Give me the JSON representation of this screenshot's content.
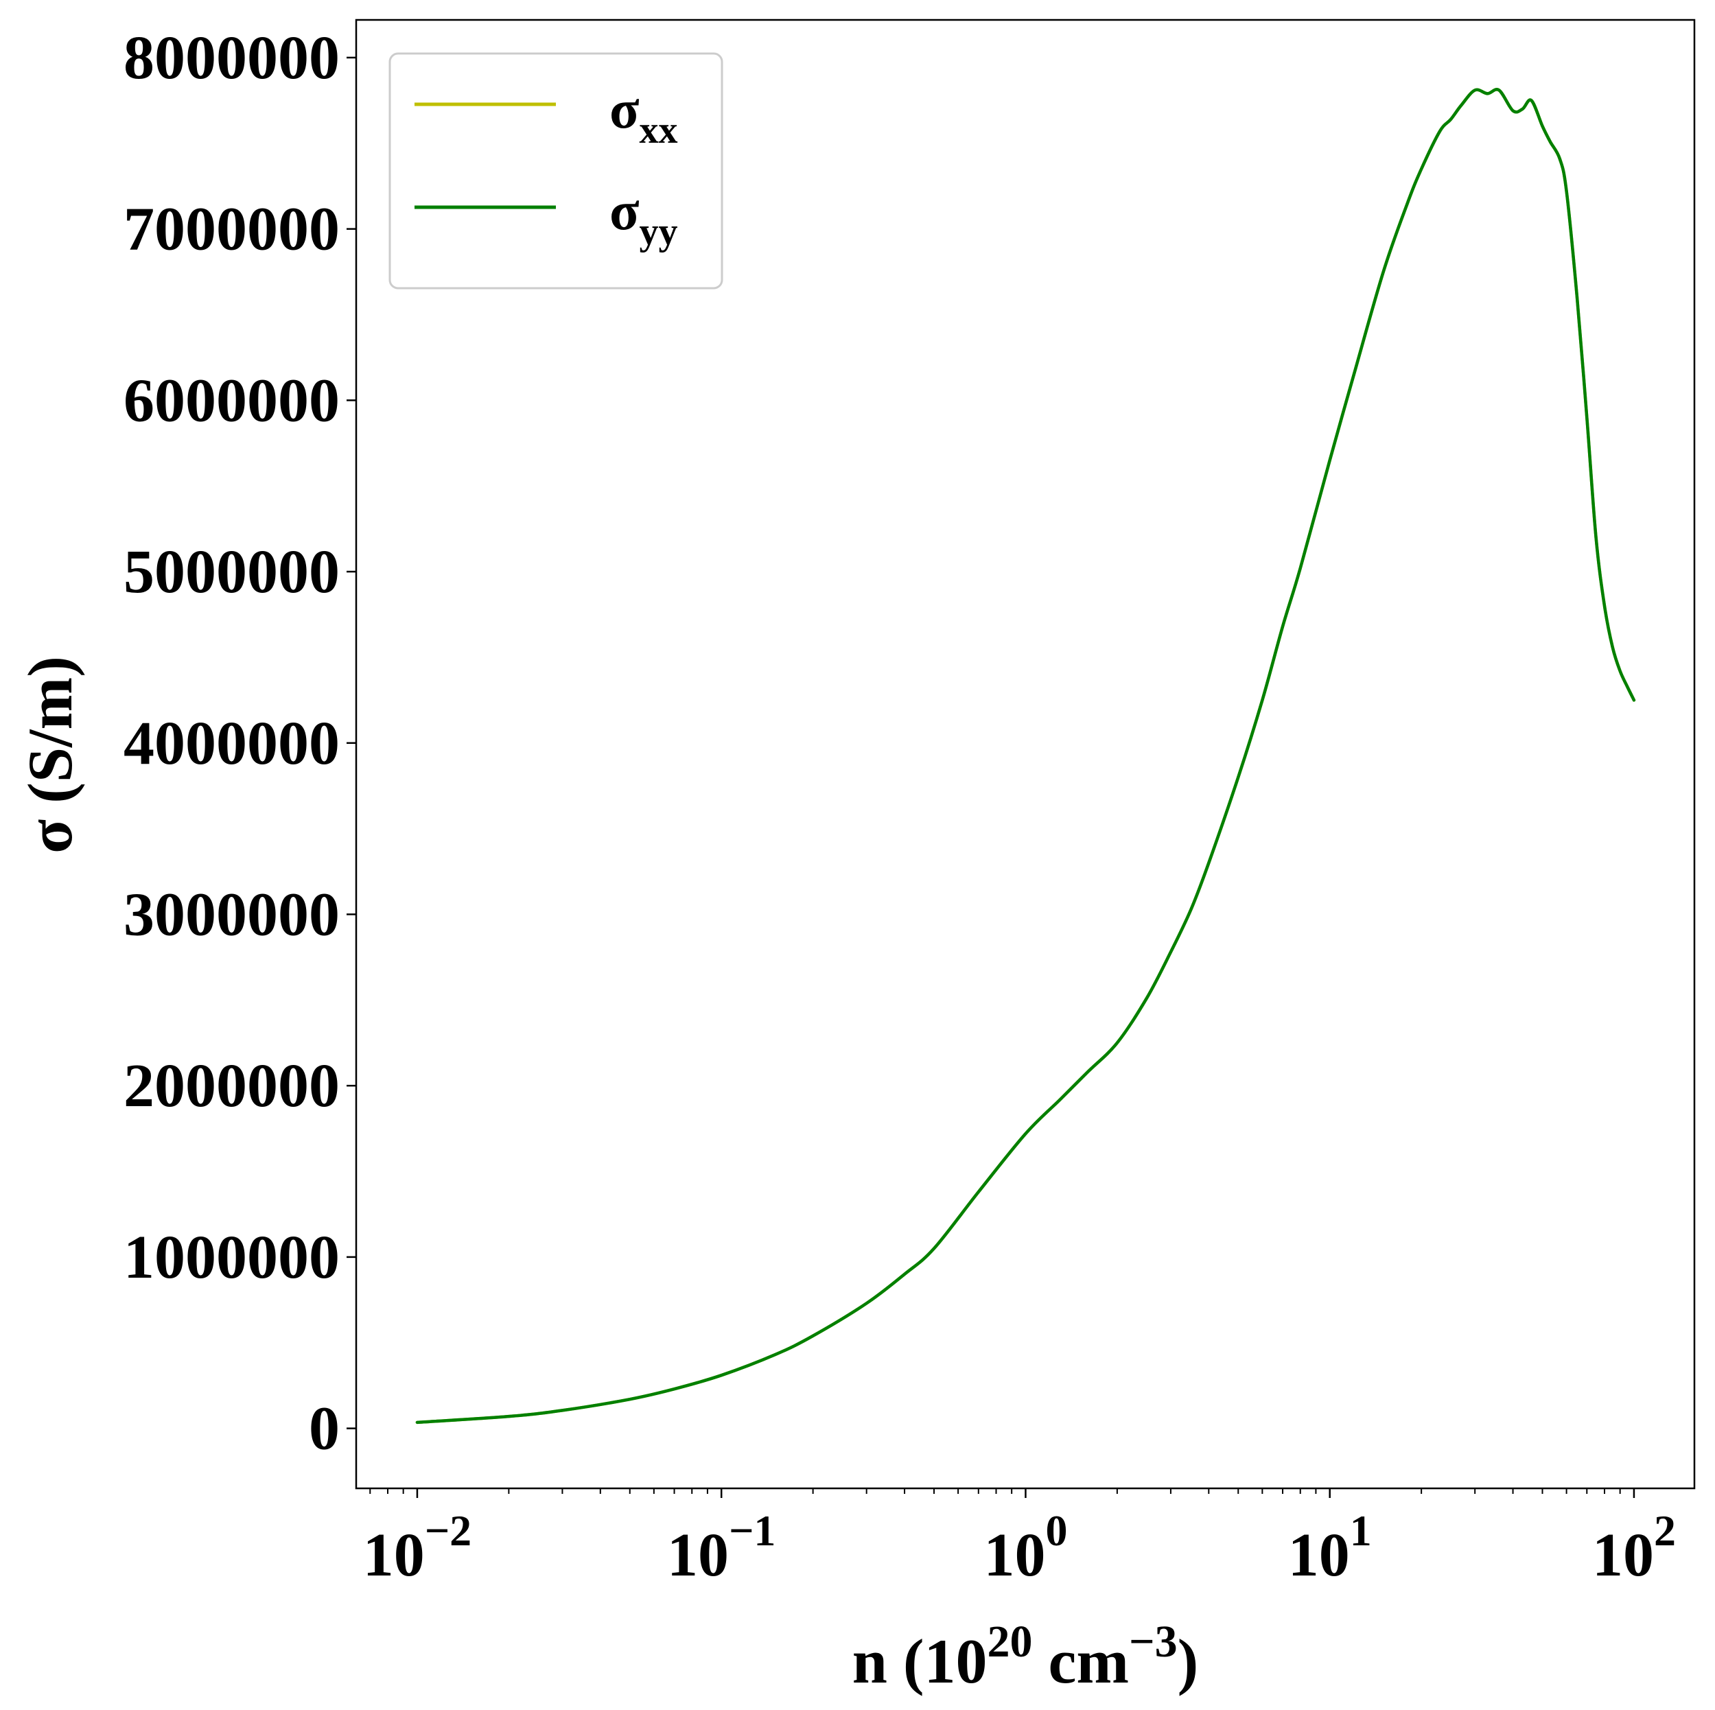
{
  "chart_data": {
    "type": "line",
    "xlabel": {
      "base": "n (10",
      "exp1": "20",
      "mid": " cm",
      "exp2": "−3",
      "end": ")"
    },
    "ylabel": "σ (S/m)",
    "xscale": "log",
    "xlim": [
      0.0063,
      158
    ],
    "ylim": [
      -350000,
      8220000
    ],
    "xticks": [
      {
        "value": 0.01,
        "base": "10",
        "exp": "−2"
      },
      {
        "value": 0.1,
        "base": "10",
        "exp": "−1"
      },
      {
        "value": 1,
        "base": "10",
        "exp": "0"
      },
      {
        "value": 10,
        "base": "10",
        "exp": "1"
      },
      {
        "value": 100,
        "base": "10",
        "exp": "2"
      }
    ],
    "yticks": [
      0,
      1000000,
      2000000,
      3000000,
      4000000,
      5000000,
      6000000,
      7000000,
      8000000
    ],
    "ytick_labels": [
      "0",
      "1000000",
      "2000000",
      "3000000",
      "4000000",
      "5000000",
      "6000000",
      "7000000",
      "8000000"
    ],
    "grid": false,
    "legend": {
      "placement": "top-left",
      "entries": [
        {
          "base": "σ",
          "sub": "xx",
          "color": "#bfbf00"
        },
        {
          "base": "σ",
          "sub": "yy",
          "color": "#008000"
        }
      ]
    },
    "series": [
      {
        "color": "#bfbf00",
        "x": [
          0.01,
          0.02,
          0.03,
          0.05,
          0.07,
          0.1,
          0.15,
          0.2,
          0.3,
          0.4,
          0.5,
          0.7,
          1.0,
          1.3,
          1.6,
          2.0,
          2.5,
          3.0,
          3.5,
          4.0,
          5.0,
          6.0,
          7.0,
          8.0,
          10.0,
          12.0,
          15.0,
          18.0,
          20.0,
          23.0,
          25.0,
          27.0,
          30.0,
          33.0,
          36.0,
          40.0,
          43.0,
          46.0,
          50.0,
          53.0,
          57.0,
          60.0,
          65.0,
          70.0,
          75.0,
          80.0,
          85.0,
          90.0,
          95.0,
          100.0
        ],
        "y": [
          35000,
          70000,
          105000,
          170000,
          230000,
          310000,
          430000,
          540000,
          730000,
          900000,
          1050000,
          1380000,
          1720000,
          1920000,
          2080000,
          2250000,
          2510000,
          2780000,
          3030000,
          3300000,
          3800000,
          4250000,
          4680000,
          5020000,
          5650000,
          6150000,
          6750000,
          7150000,
          7350000,
          7570000,
          7640000,
          7720000,
          7810000,
          7790000,
          7810000,
          7690000,
          7700000,
          7750000,
          7600000,
          7510000,
          7410000,
          7220000,
          6600000,
          5900000,
          5200000,
          4800000,
          4560000,
          4420000,
          4330000,
          4250000
        ]
      },
      {
        "color": "#008000",
        "x": [
          0.01,
          0.02,
          0.03,
          0.05,
          0.07,
          0.1,
          0.15,
          0.2,
          0.3,
          0.4,
          0.5,
          0.7,
          1.0,
          1.3,
          1.6,
          2.0,
          2.5,
          3.0,
          3.5,
          4.0,
          5.0,
          6.0,
          7.0,
          8.0,
          10.0,
          12.0,
          15.0,
          18.0,
          20.0,
          23.0,
          25.0,
          27.0,
          30.0,
          33.0,
          36.0,
          40.0,
          43.0,
          46.0,
          50.0,
          53.0,
          57.0,
          60.0,
          65.0,
          70.0,
          75.0,
          80.0,
          85.0,
          90.0,
          95.0,
          100.0
        ],
        "y": [
          35000,
          70000,
          105000,
          170000,
          230000,
          310000,
          430000,
          540000,
          730000,
          900000,
          1050000,
          1380000,
          1720000,
          1920000,
          2080000,
          2250000,
          2510000,
          2780000,
          3030000,
          3300000,
          3800000,
          4250000,
          4680000,
          5020000,
          5650000,
          6150000,
          6750000,
          7150000,
          7350000,
          7570000,
          7640000,
          7720000,
          7810000,
          7790000,
          7810000,
          7690000,
          7700000,
          7750000,
          7600000,
          7510000,
          7410000,
          7220000,
          6600000,
          5900000,
          5200000,
          4800000,
          4560000,
          4420000,
          4330000,
          4250000
        ]
      }
    ]
  }
}
